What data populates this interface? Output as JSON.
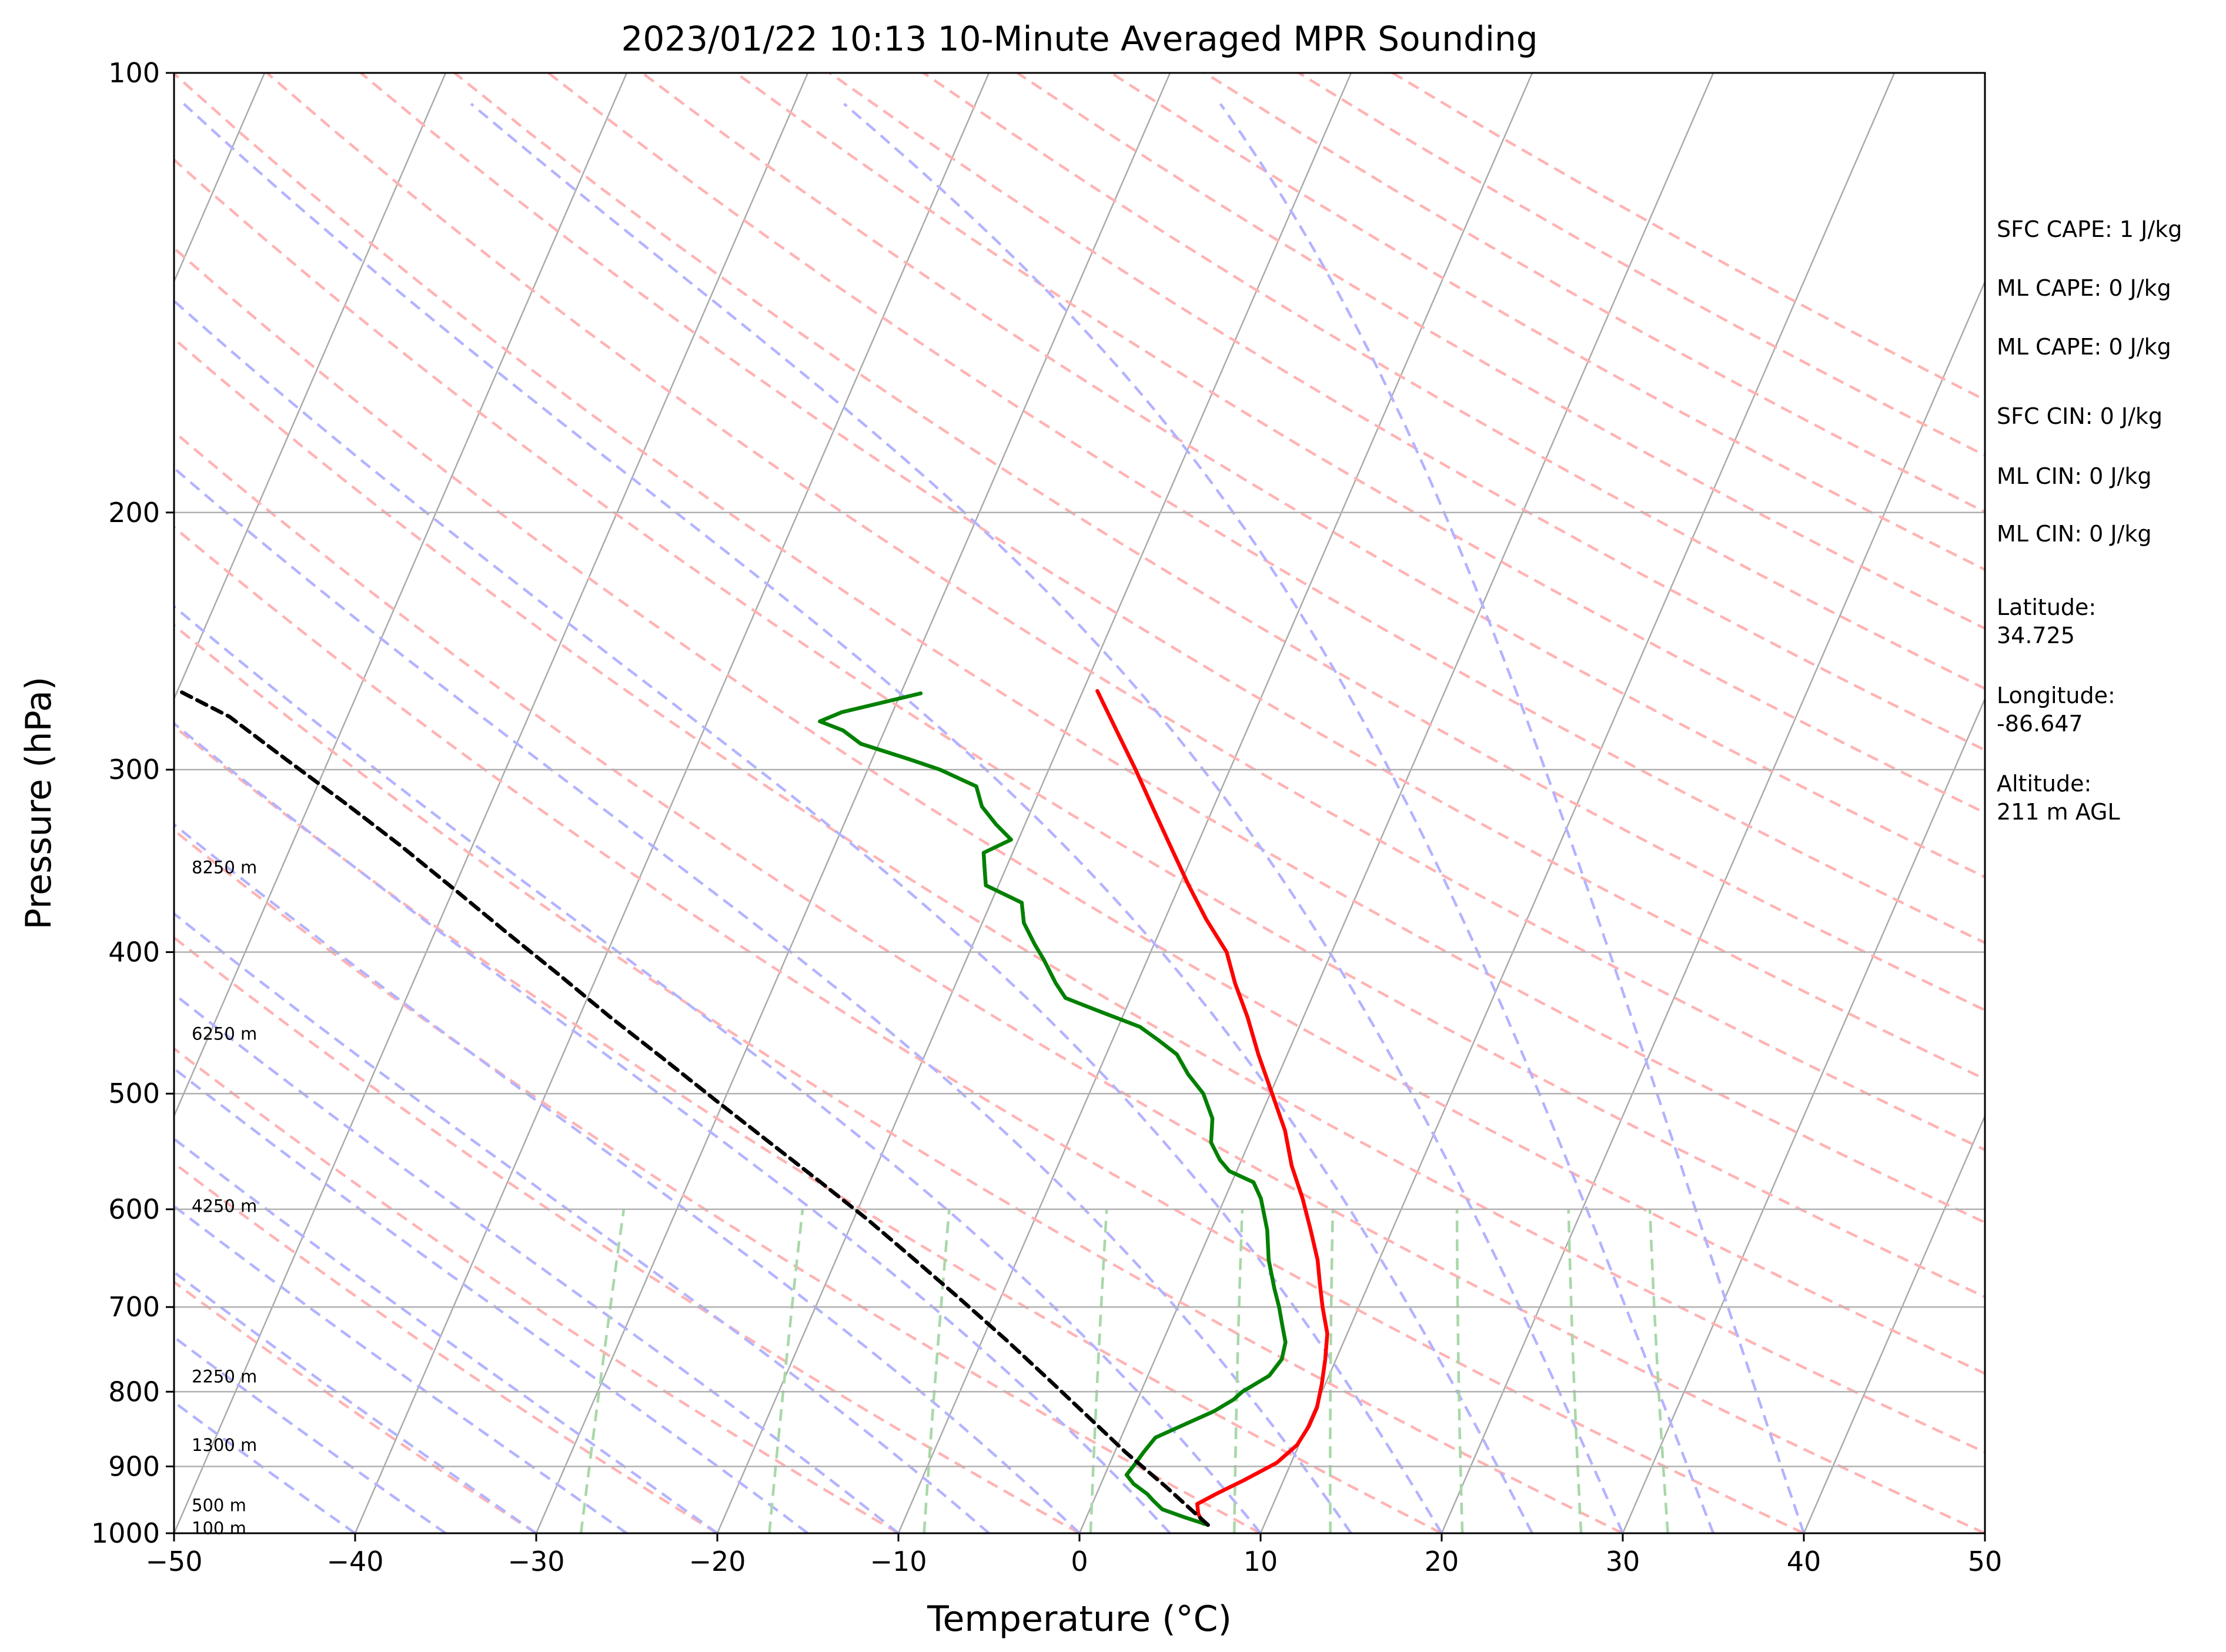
{
  "chart_data": {
    "type": "line",
    "title": "2023/01/22 10:13 10-Minute Averaged MPR Sounding",
    "xlabel": "Temperature (°C)",
    "ylabel": "Pressure (hPa)",
    "xlim": [
      -50,
      50
    ],
    "ylim": [
      1000,
      100
    ],
    "yscale": "log",
    "skew": "skew-T log-p",
    "x_ticks": [
      "−50",
      "−40",
      "−30",
      "−20",
      "−10",
      "0",
      "10",
      "20",
      "30",
      "40",
      "50"
    ],
    "x_tick_values": [
      -50,
      -40,
      -30,
      -20,
      -10,
      0,
      10,
      20,
      30,
      40,
      50
    ],
    "y_ticks": [
      "100",
      "200",
      "300",
      "400",
      "500",
      "600",
      "700",
      "800",
      "900",
      "1000"
    ],
    "y_tick_values": [
      100,
      200,
      300,
      400,
      500,
      600,
      700,
      800,
      900,
      1000
    ],
    "grid": true,
    "background_lines": {
      "isotherm_color": "#aaaaaa",
      "dry_adiabat_color": "#ffb3b3",
      "moist_adiabat_color": "#b3b3ff",
      "mixing_ratio_color": "#a8d8a8"
    },
    "series": [
      {
        "color": "#ff0000",
        "points": [
          [
            6.6,
            985
          ],
          [
            6.1,
            970
          ],
          [
            5.8,
            955
          ],
          [
            6.6,
            940
          ],
          [
            7.8,
            920
          ],
          [
            9.2,
            895
          ],
          [
            9.9,
            870
          ],
          [
            10.1,
            845
          ],
          [
            10.1,
            820
          ],
          [
            9.8,
            790
          ],
          [
            9.4,
            760
          ],
          [
            8.9,
            730
          ],
          [
            8.0,
            700
          ],
          [
            7.3,
            675
          ],
          [
            6.6,
            650
          ],
          [
            5.5,
            620
          ],
          [
            4.3,
            590
          ],
          [
            2.9,
            560
          ],
          [
            1.7,
            530
          ],
          [
            0.1,
            500
          ],
          [
            -1.6,
            470
          ],
          [
            -3.1,
            443
          ],
          [
            -4.6,
            420
          ],
          [
            -5.8,
            400
          ],
          [
            -7.7,
            380
          ],
          [
            -9.5,
            360
          ],
          [
            -11.3,
            340
          ],
          [
            -13.2,
            320
          ],
          [
            -15.2,
            300
          ],
          [
            -17.2,
            282
          ],
          [
            -19.2,
            265
          ]
        ]
      },
      {
        "color": "#008000",
        "points": [
          [
            6.9,
            987
          ],
          [
            5.4,
            975
          ],
          [
            4.0,
            963
          ],
          [
            3.3,
            950
          ],
          [
            2.8,
            940
          ],
          [
            1.8,
            925
          ],
          [
            1.2,
            912
          ],
          [
            1.4,
            897
          ],
          [
            1.6,
            880
          ],
          [
            1.9,
            860
          ],
          [
            3.0,
            845
          ],
          [
            4.5,
            825
          ],
          [
            5.3,
            810
          ],
          [
            5.6,
            800
          ],
          [
            6.7,
            780
          ],
          [
            7.0,
            760
          ],
          [
            6.8,
            740
          ],
          [
            6.2,
            720
          ],
          [
            5.6,
            700
          ],
          [
            4.9,
            680
          ],
          [
            3.9,
            650
          ],
          [
            3.1,
            620
          ],
          [
            2.0,
            590
          ],
          [
            1.2,
            575
          ],
          [
            -0.4,
            565
          ],
          [
            -1.2,
            555
          ],
          [
            -2.1,
            540
          ],
          [
            -2.6,
            520
          ],
          [
            -3.7,
            500
          ],
          [
            -5.0,
            485
          ],
          [
            -6.1,
            470
          ],
          [
            -7.4,
            460
          ],
          [
            -8.8,
            450
          ],
          [
            -11.2,
            440
          ],
          [
            -12.4,
            435
          ],
          [
            -13.6,
            430
          ],
          [
            -14.5,
            420
          ],
          [
            -15.7,
            405
          ],
          [
            -16.6,
            395
          ],
          [
            -17.7,
            382
          ],
          [
            -18.3,
            370
          ],
          [
            -20.7,
            360
          ],
          [
            -21.2,
            350
          ],
          [
            -21.6,
            342
          ],
          [
            -20.4,
            335
          ],
          [
            -21.6,
            327
          ],
          [
            -22.8,
            318
          ],
          [
            -23.6,
            308
          ],
          [
            -26.0,
            300
          ],
          [
            -28.0,
            295
          ],
          [
            -31.0,
            288
          ],
          [
            -32.3,
            282
          ],
          [
            -33.8,
            278
          ],
          [
            -32.8,
            274
          ],
          [
            -28.9,
            266
          ]
        ]
      },
      {
        "color": "#000000",
        "style": "dashed",
        "points": [
          [
            6.9,
            987
          ],
          [
            3.7,
            930
          ],
          [
            0.6,
            880
          ],
          [
            -2.2,
            834
          ],
          [
            -5.3,
            786
          ],
          [
            -8.7,
            737
          ],
          [
            -12.3,
            690
          ],
          [
            -15.8,
            648
          ],
          [
            -19.2,
            610
          ],
          [
            -22.7,
            575
          ],
          [
            -26.7,
            538
          ],
          [
            -30.5,
            505
          ],
          [
            -34.5,
            472
          ],
          [
            -38.3,
            443
          ],
          [
            -42.2,
            414
          ],
          [
            -46.0,
            388
          ],
          [
            -50.0,
            362
          ],
          [
            -54.0,
            338
          ],
          [
            -58.1,
            316
          ],
          [
            -62.4,
            295
          ],
          [
            -66.5,
            276
          ],
          [
            -69.9,
            265
          ]
        ]
      }
    ],
    "height_labels": [
      {
        "text": "8250 m",
        "p": 350
      },
      {
        "text": "6250 m",
        "p": 455
      },
      {
        "text": "4250 m",
        "p": 597
      },
      {
        "text": "2250 m",
        "p": 781
      },
      {
        "text": "1300 m",
        "p": 870
      },
      {
        "text": "500 m",
        "p": 957
      },
      {
        "text": "100 m",
        "p": 992
      }
    ]
  },
  "sidebar": [
    {
      "text": "SFC CAPE: 1 J/kg"
    },
    {
      "text": "ML CAPE: 0 J/kg"
    },
    {
      "text": "ML CAPE: 0 J/kg"
    },
    {
      "text": "SFC CIN: 0 J/kg"
    },
    {
      "text": "ML CIN: 0 J/kg"
    },
    {
      "text": "ML CIN: 0 J/kg"
    },
    {
      "text": "Latitude:\n34.725"
    },
    {
      "text": "Longitude:\n-86.647"
    },
    {
      "text": "Altitude:\n211 m AGL"
    }
  ]
}
